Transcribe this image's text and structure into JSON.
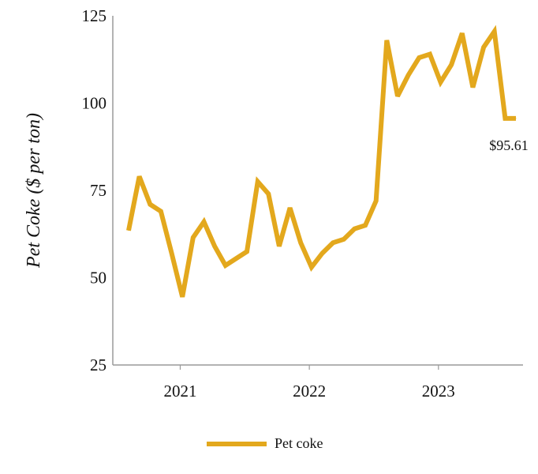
{
  "chart_data": {
    "type": "line",
    "title": "",
    "xlabel": "",
    "ylabel": "Pet Coke ($ per ton)",
    "ylim": [
      25,
      125
    ],
    "yticks": [
      "125",
      "100",
      "75",
      "50",
      "25"
    ],
    "xticks": [
      "2021",
      "2022",
      "2023"
    ],
    "x_index_range": [
      0,
      30
    ],
    "xtick_positions": [
      4,
      14,
      24
    ],
    "grid": false,
    "legend": {
      "position": "bottom-center"
    },
    "line_color": "#E3A81D",
    "series": [
      {
        "name": "Pet coke",
        "values": [
          63.5,
          79,
          71,
          69,
          57,
          44.5,
          61.5,
          66,
          59,
          53.5,
          55.5,
          57.5,
          77.5,
          74,
          59,
          70,
          60,
          53,
          57,
          60,
          61,
          64,
          65,
          72,
          118,
          102,
          108,
          113,
          114,
          106,
          111,
          120,
          104.5,
          116,
          120.5,
          95.61,
          95.61
        ]
      }
    ],
    "annotations": [
      {
        "text": "$95.61",
        "value": 95.61
      }
    ]
  }
}
